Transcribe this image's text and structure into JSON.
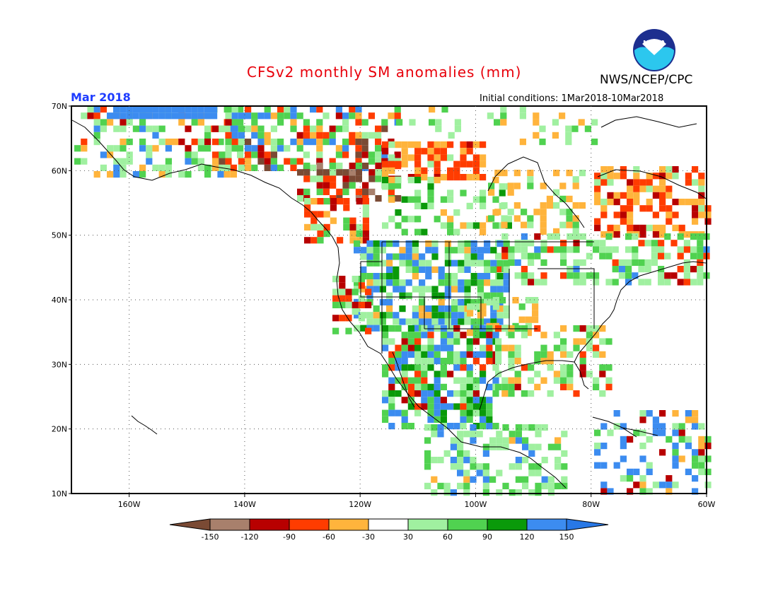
{
  "title": "CFSv2 monthly SM anomalies (mm)",
  "organization": "NWS/NCEP/CPC",
  "logo_text": "NOAA",
  "month_label": "Mar 2018",
  "initial_conditions": "Initial conditions: 1Mar2018-10Mar2018",
  "map": {
    "lat_labels": [
      "70N",
      "60N",
      "50N",
      "40N",
      "30N",
      "20N",
      "10N"
    ],
    "lon_labels": [
      "160W",
      "140W",
      "120W",
      "100W",
      "80W",
      "60W"
    ]
  },
  "legend": {
    "bins": [
      {
        "color": "#7a4a34"
      },
      {
        "color": "#a8806c"
      },
      {
        "color": "#b80000"
      },
      {
        "color": "#ff3c00"
      },
      {
        "color": "#ffb43c"
      },
      {
        "color": "#ffffff"
      },
      {
        "color": "#a0f0a0"
      },
      {
        "color": "#50d250"
      },
      {
        "color": "#0a9a0a"
      },
      {
        "color": "#3c8cf0"
      },
      {
        "color": "#2878e6"
      }
    ],
    "ticks": [
      "-150",
      "-120",
      "-90",
      "-60",
      "-30",
      "30",
      "60",
      "90",
      "120",
      "150"
    ]
  }
}
